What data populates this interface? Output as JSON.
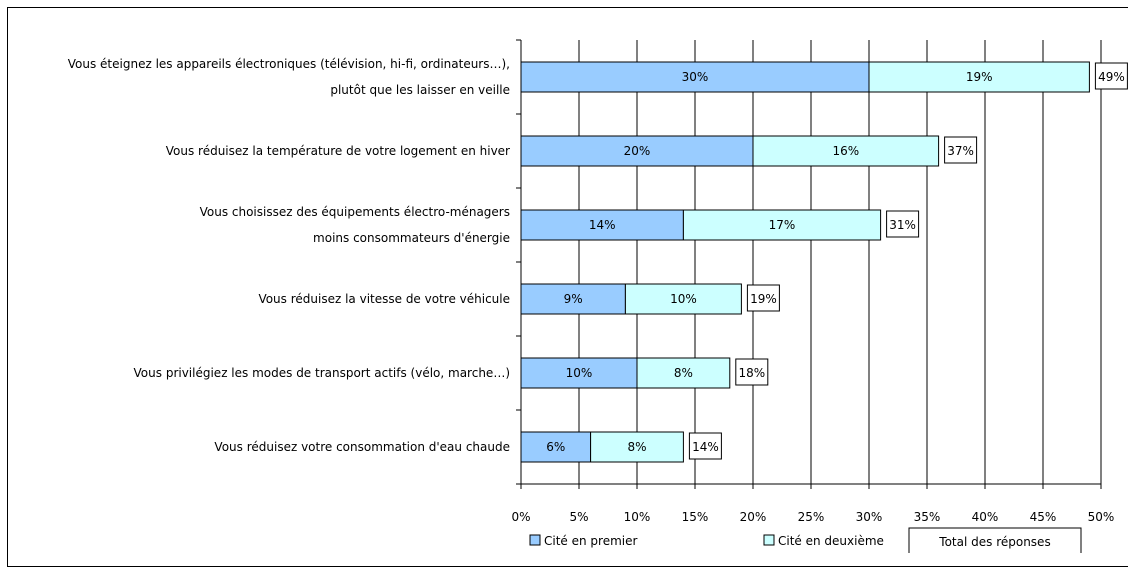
{
  "chart_data": {
    "type": "bar",
    "orientation": "horizontal",
    "stacked": true,
    "categories": [
      [
        "Vous éteignez les appareils électroniques (télévision, hi-fi, ordinateurs…),",
        "plutôt que les laisser en veille"
      ],
      [
        "Vous réduisez la température de votre logement en hiver"
      ],
      [
        "Vous choisissez des équipements électro-ménagers",
        "moins consommateurs d'énergie"
      ],
      [
        "Vous réduisez la vitesse de votre véhicule"
      ],
      [
        "Vous privilégiez les modes de transport actifs (vélo, marche…)"
      ],
      [
        "Vous réduisez votre consommation d'eau chaude"
      ]
    ],
    "series": [
      {
        "name": "Cité en premier",
        "color": "#99ccff",
        "values": [
          30,
          20,
          14,
          9,
          10,
          6
        ],
        "labels": [
          "30%",
          "20%",
          "14%",
          "9%",
          "10%",
          "6%"
        ]
      },
      {
        "name": "Cité en deuxième",
        "color": "#ccffff",
        "values": [
          19,
          16,
          17,
          10,
          8,
          8
        ],
        "labels": [
          "19%",
          "16%",
          "17%",
          "10%",
          "8%",
          "8%"
        ]
      }
    ],
    "totals": {
      "name": "Total des réponses",
      "labels": [
        "49%",
        "37%",
        "31%",
        "19%",
        "18%",
        "14%"
      ]
    },
    "xlim": [
      0,
      50
    ],
    "x_ticks": [
      0,
      5,
      10,
      15,
      20,
      25,
      30,
      35,
      40,
      45,
      50
    ],
    "x_tick_labels": [
      "0%",
      "5%",
      "10%",
      "15%",
      "20%",
      "25%",
      "30%",
      "35%",
      "40%",
      "45%",
      "50%"
    ],
    "grid": true,
    "legend_position": "bottom"
  }
}
